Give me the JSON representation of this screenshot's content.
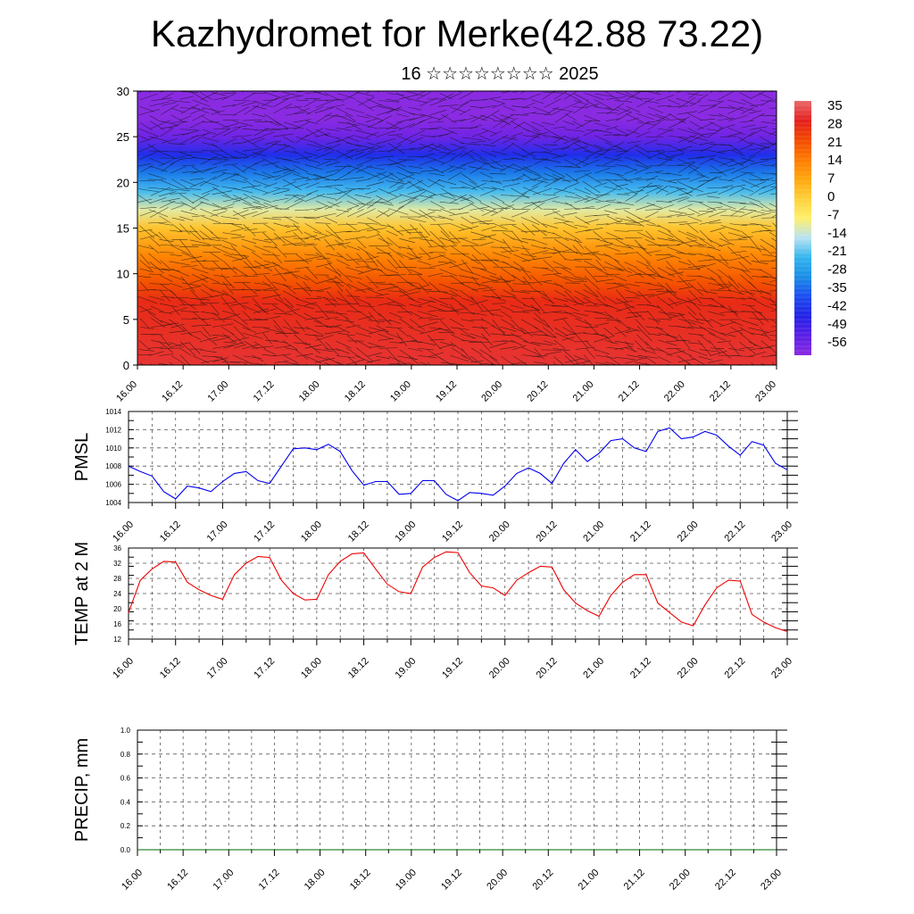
{
  "header": {
    "title": "Kazhydromet for Merke(42.88 73.22)",
    "subtitle": "16 ☆☆☆☆☆☆☆☆ 2025"
  },
  "chart_data": [
    {
      "type": "heatmap",
      "title": "",
      "xlabel": "",
      "ylabel": "",
      "x_ticks": [
        "16.00",
        "16.12",
        "17.00",
        "17.12",
        "18.00",
        "18.12",
        "19.00",
        "19.12",
        "20.00",
        "20.12",
        "21.00",
        "21.12",
        "22.00",
        "22.12",
        "23.00"
      ],
      "y_ticks": [
        0,
        5,
        10,
        15,
        20,
        25,
        30
      ],
      "ylim": [
        0,
        30
      ],
      "colorbar_labels": [
        "35",
        "28",
        "21",
        "14",
        "7",
        "0",
        "-7",
        "-14",
        "-21",
        "-28",
        "-35",
        "-42",
        "-49",
        "-56"
      ],
      "colorbar_colors": [
        "#e86a6a",
        "#e61e1e",
        "#f24a00",
        "#ff7a00",
        "#ffa60d",
        "#ffd03a",
        "#fff06a",
        "#b8e2f2",
        "#33b5ee",
        "#1a8ee6",
        "#1c4cf0",
        "#2222e6",
        "#5a1ee6",
        "#8a2be2"
      ],
      "band_heights": [
        0,
        7,
        9,
        12,
        15,
        17,
        19,
        21,
        23,
        25,
        27,
        30
      ],
      "band_temps": [
        30,
        26,
        20,
        12,
        2,
        -10,
        -20,
        -30,
        -40,
        -52,
        -58,
        -56
      ],
      "wind_arrows": true
    },
    {
      "type": "line",
      "ylabel": "PMSL",
      "ylim": [
        1004,
        1014
      ],
      "y_ticks": [
        1004,
        1006,
        1008,
        1010,
        1012,
        1014
      ],
      "x_ticks": [
        "16.00",
        "16.12",
        "17.00",
        "17.12",
        "18.00",
        "18.12",
        "19.00",
        "19.12",
        "20.00",
        "20.12",
        "21.00",
        "21.12",
        "22.00",
        "22.12",
        "23.00"
      ],
      "color": "#0000ee",
      "values": [
        1008.0,
        1007.4,
        1006.9,
        1005.2,
        1004.4,
        1005.8,
        1005.6,
        1005.2,
        1006.3,
        1007.2,
        1007.4,
        1006.4,
        1006.1,
        1008.0,
        1009.9,
        1010.0,
        1009.8,
        1010.4,
        1009.6,
        1007.5,
        1005.9,
        1006.3,
        1006.3,
        1004.9,
        1005.0,
        1006.4,
        1006.4,
        1004.9,
        1004.2,
        1005.1,
        1005.0,
        1004.8,
        1005.8,
        1007.2,
        1007.8,
        1007.2,
        1006.1,
        1008.3,
        1009.8,
        1008.5,
        1009.4,
        1010.8,
        1011.0,
        1010.0,
        1009.6,
        1011.8,
        1012.2,
        1011.0,
        1011.2,
        1011.8,
        1011.4,
        1010.2,
        1009.2,
        1010.7,
        1010.3,
        1008.3,
        1007.6
      ]
    },
    {
      "type": "line",
      "ylabel": "TEMP at 2 M",
      "ylim": [
        12,
        36
      ],
      "y_ticks": [
        12,
        16,
        20,
        24,
        28,
        32,
        36
      ],
      "x_ticks": [
        "16.00",
        "16.12",
        "17.00",
        "17.12",
        "18.00",
        "18.12",
        "19.00",
        "19.12",
        "20.00",
        "20.12",
        "21.00",
        "21.12",
        "22.00",
        "22.12",
        "23.00"
      ],
      "color": "#ee0000",
      "values": [
        19.0,
        27.5,
        30.5,
        32.5,
        32.3,
        27.0,
        25.0,
        23.5,
        22.5,
        29.0,
        32.0,
        33.8,
        33.5,
        27.5,
        24.0,
        22.3,
        22.5,
        29.0,
        32.5,
        34.5,
        34.7,
        30.5,
        26.5,
        24.5,
        24.0,
        31.0,
        33.5,
        35.0,
        34.8,
        29.5,
        26.0,
        25.5,
        23.5,
        27.5,
        29.5,
        31.2,
        31.0,
        25.0,
        21.5,
        19.5,
        18.0,
        23.5,
        27.0,
        29.0,
        29.0,
        21.5,
        19.0,
        16.5,
        15.5,
        21.0,
        25.5,
        27.5,
        27.3,
        18.5,
        16.5,
        15.0,
        14.0
      ]
    },
    {
      "type": "line",
      "ylabel": "PRECIP, mm",
      "ylim": [
        0,
        1
      ],
      "y_ticks": [
        "0.0",
        "0.2",
        "0.4",
        "0.6",
        "0.8",
        "1.0"
      ],
      "x_ticks": [
        "16.00",
        "16.12",
        "17.00",
        "17.12",
        "18.00",
        "18.12",
        "19.00",
        "19.12",
        "20.00",
        "20.12",
        "21.00",
        "21.12",
        "22.00",
        "22.12",
        "23.00"
      ],
      "color": "#006400",
      "values": [
        0,
        0,
        0,
        0,
        0,
        0,
        0,
        0,
        0,
        0,
        0,
        0,
        0,
        0,
        0,
        0,
        0,
        0,
        0,
        0,
        0,
        0,
        0,
        0,
        0,
        0,
        0,
        0,
        0,
        0,
        0,
        0,
        0,
        0,
        0,
        0,
        0,
        0,
        0,
        0,
        0,
        0,
        0,
        0,
        0,
        0,
        0,
        0,
        0,
        0,
        0,
        0,
        0,
        0,
        0,
        0,
        0,
        0,
        0
      ]
    }
  ]
}
